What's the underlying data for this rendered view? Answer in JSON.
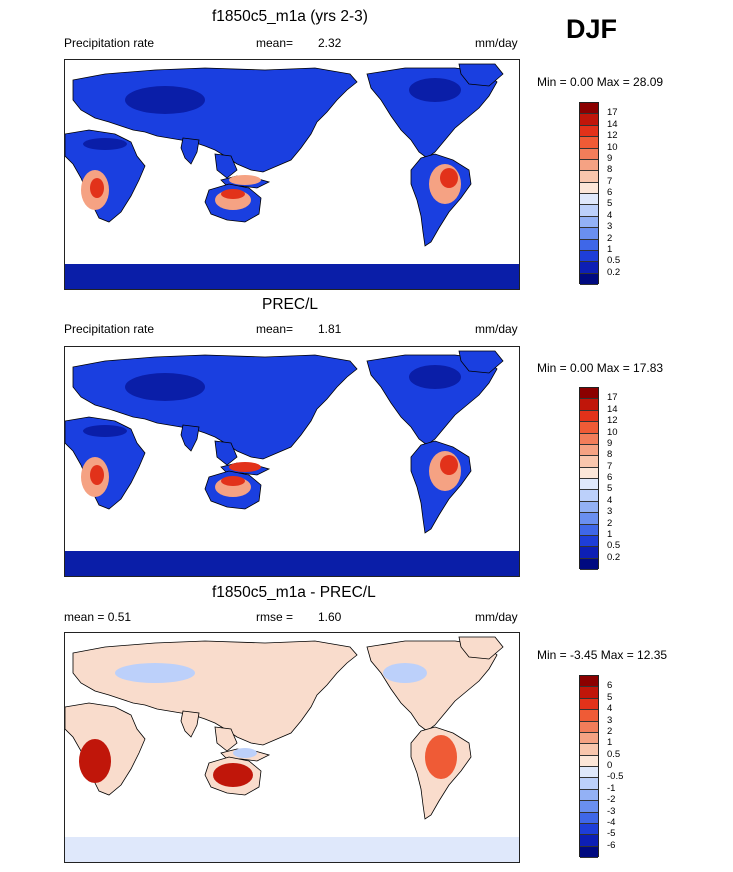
{
  "season": "DJF",
  "panels": [
    {
      "title": "f1850c5_m1a (yrs 2-3)",
      "left_label": "Precipitation rate",
      "mean_label": "mean=",
      "mean_value": "2.32",
      "units": "mm/day",
      "minmax": "Min =   0.00 Max =  28.09",
      "colorbar": {
        "labels": [
          "17",
          "14",
          "12",
          "10",
          "9",
          "8",
          "7",
          "6",
          "5",
          "4",
          "3",
          "2",
          "1",
          "0.5",
          "0.2"
        ],
        "colors": [
          "#8b0000",
          "#c0160a",
          "#e2321a",
          "#ef5b36",
          "#f27d5a",
          "#f5a283",
          "#f9c6ad",
          "#fce6d8",
          "#dfe8fb",
          "#bcd0fa",
          "#93b1f5",
          "#6a8ff0",
          "#3f67e8",
          "#1e3ed8",
          "#0d1fb5",
          "#000a80"
        ]
      },
      "map_type": "model"
    },
    {
      "title": "PREC/L",
      "left_label": "Precipitation rate",
      "mean_label": "mean=",
      "mean_value": "1.81",
      "units": "mm/day",
      "minmax": "Min =   0.00 Max =  17.83",
      "colorbar": {
        "labels": [
          "17",
          "14",
          "12",
          "10",
          "9",
          "8",
          "7",
          "6",
          "5",
          "4",
          "3",
          "2",
          "1",
          "0.5",
          "0.2"
        ],
        "colors": [
          "#8b0000",
          "#c0160a",
          "#e2321a",
          "#ef5b36",
          "#f27d5a",
          "#f5a283",
          "#f9c6ad",
          "#fce6d8",
          "#dfe8fb",
          "#bcd0fa",
          "#93b1f5",
          "#6a8ff0",
          "#3f67e8",
          "#1e3ed8",
          "#0d1fb5",
          "#000a80"
        ]
      },
      "map_type": "obs"
    },
    {
      "title": "f1850c5_m1a - PREC/L",
      "left_label": "mean =   0.51",
      "mean_label": "rmse =",
      "mean_value": "1.60",
      "units": "mm/day",
      "minmax": "Min =  -3.45 Max =  12.35",
      "colorbar": {
        "labels": [
          "6",
          "5",
          "4",
          "3",
          "2",
          "1",
          "0.5",
          "0",
          "-0.5",
          "-1",
          "-2",
          "-3",
          "-4",
          "-5",
          "-6"
        ],
        "colors": [
          "#8b0000",
          "#c0160a",
          "#e2321a",
          "#ef5b36",
          "#f27d5a",
          "#f5a283",
          "#f9c6ad",
          "#fce6d8",
          "#dfe8fb",
          "#bcd0fa",
          "#93b1f5",
          "#6a8ff0",
          "#3f67e8",
          "#1e3ed8",
          "#0d1fb5",
          "#000a80"
        ]
      },
      "map_type": "diff"
    }
  ]
}
